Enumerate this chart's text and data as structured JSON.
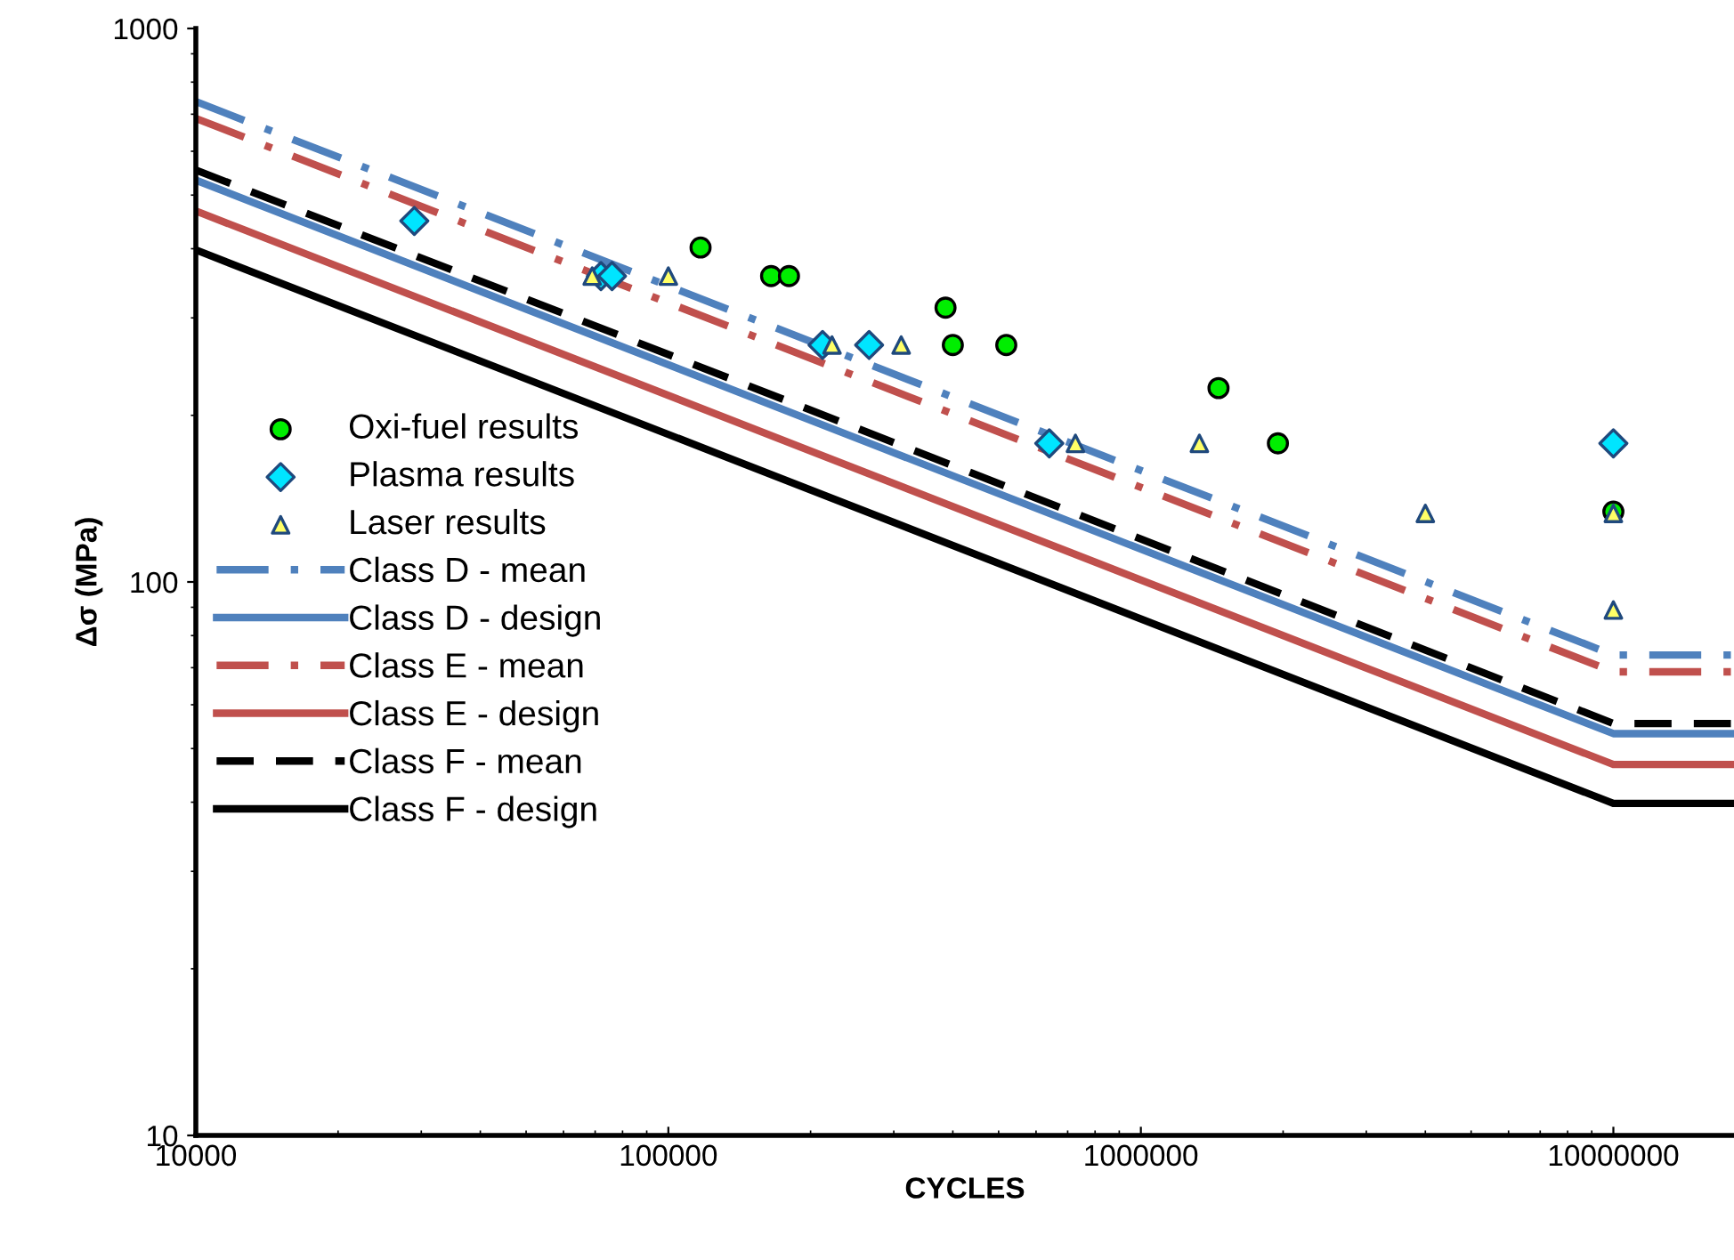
{
  "chart_data": {
    "type": "scatter",
    "xlabel": "CYCLES",
    "ylabel": "Δσ (MPa)",
    "log": "xy",
    "xlim": [
      10000,
      18000000
    ],
    "ylim": [
      10,
      1000
    ],
    "xticks": [
      10000,
      100000,
      1000000,
      10000000
    ],
    "yticks": [
      10,
      100,
      1000
    ],
    "grid": false,
    "legend": "left",
    "series": [
      {
        "name": "Oxi-fuel results",
        "marker": "circle",
        "color": "#00ee00",
        "x": [
          117000,
          165000,
          180000,
          386000,
          400000,
          519000,
          1460000,
          1950000,
          10000000
        ],
        "values": [
          402,
          357,
          357,
          313,
          268,
          268,
          224,
          178,
          134
        ]
      },
      {
        "name": "Plasma results",
        "marker": "diamond",
        "color": "#00e5ff",
        "x": [
          29000,
          72000,
          76000,
          212000,
          266000,
          640000,
          10000000
        ],
        "values": [
          449,
          357,
          357,
          268,
          268,
          178,
          178
        ]
      },
      {
        "name": "Laser results",
        "marker": "triangle",
        "color": "#ffff66",
        "x": [
          69000,
          100000,
          222000,
          311000,
          727000,
          1330000,
          4000000,
          10000000,
          10000000
        ],
        "values": [
          357,
          357,
          268,
          268,
          178,
          178,
          133,
          133,
          89
        ]
      },
      {
        "name": "Class D - mean",
        "type": "line",
        "line_style": "dashdot",
        "color": "#4f81bd",
        "x": [
          10000,
          10000000,
          18000000
        ],
        "values": [
          738,
          73.8,
          73.8
        ]
      },
      {
        "name": "Class D - design",
        "type": "line",
        "line_style": "solid",
        "color": "#4f81bd",
        "x": [
          10000,
          10000000,
          18000000
        ],
        "values": [
          532,
          53.2,
          53.2
        ]
      },
      {
        "name": "Class E - mean",
        "type": "line",
        "line_style": "dashdot",
        "color": "#c0504d",
        "x": [
          10000,
          10000000,
          18000000
        ],
        "values": [
          688,
          68.8,
          68.8
        ]
      },
      {
        "name": "Class E - design",
        "type": "line",
        "line_style": "solid",
        "color": "#c0504d",
        "x": [
          10000,
          10000000,
          18000000
        ],
        "values": [
          468,
          46.8,
          46.8
        ]
      },
      {
        "name": "Class F - mean",
        "type": "line",
        "line_style": "dashed",
        "color": "#000000",
        "x": [
          10000,
          10000000,
          18000000
        ],
        "values": [
          555,
          55.5,
          55.5
        ]
      },
      {
        "name": "Class F - design",
        "type": "line",
        "line_style": "solid",
        "color": "#000000",
        "x": [
          10000,
          10000000,
          18000000
        ],
        "values": [
          398,
          39.8,
          39.8
        ]
      }
    ]
  }
}
